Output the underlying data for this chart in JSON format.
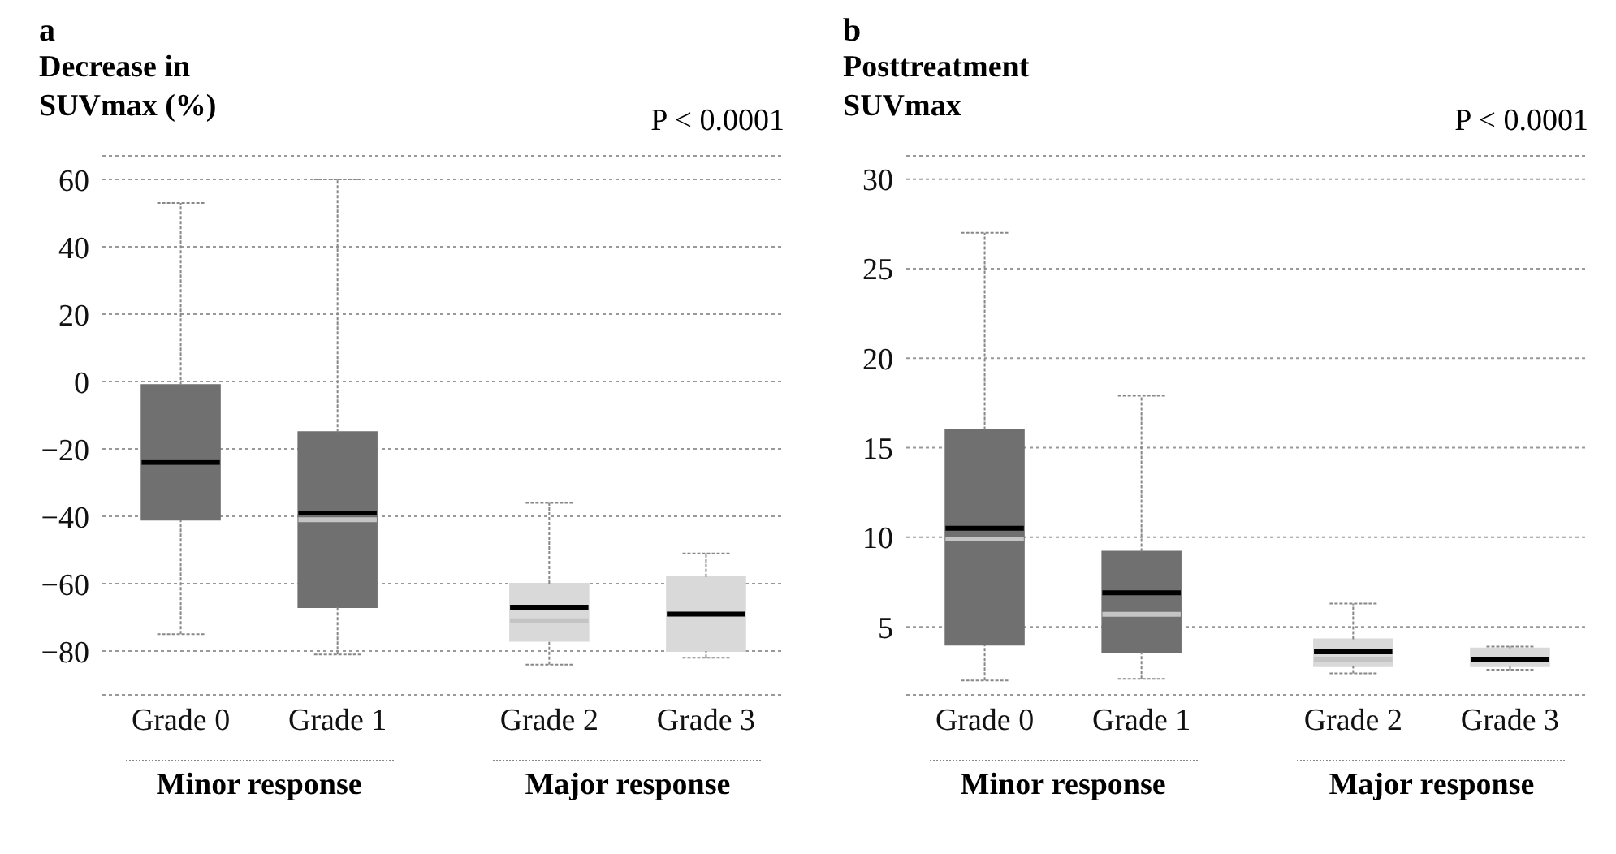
{
  "chart_data": [
    {
      "type": "box",
      "title": "a",
      "ylabel": "Decrease in SUVmax (%)",
      "categories": [
        "Grade 0",
        "Grade 1",
        "Grade 2",
        "Grade 3"
      ],
      "colors": [
        "#707070",
        "#707070",
        "#d9d9d9",
        "#d9d9d9"
      ],
      "boxes": [
        {
          "low": -75,
          "q1": -41,
          "median": -24,
          "q3": -1,
          "high": 53,
          "mean": -24
        },
        {
          "low": -81,
          "q1": -67,
          "median": -41,
          "q3": -15,
          "high": 60,
          "mean": -39
        },
        {
          "low": -84,
          "q1": -77,
          "median": -71,
          "q3": -60,
          "high": -36,
          "mean": -67
        },
        {
          "low": -82,
          "q1": -80,
          "median": -69,
          "q3": -58,
          "high": -51,
          "mean": -69
        }
      ],
      "ylim": [
        -93,
        67
      ],
      "yticks": [
        -80,
        -60,
        -40,
        -20,
        0,
        20,
        40,
        60
      ],
      "grid": "y",
      "annotations": [
        "P < 0.0001",
        "Minor response",
        "Major response"
      ]
    },
    {
      "type": "box",
      "title": "b",
      "ylabel": "Posttreatment SUVmax",
      "categories": [
        "Grade 0",
        "Grade 1",
        "Grade 2",
        "Grade 3"
      ],
      "colors": [
        "#707070",
        "#707070",
        "#d9d9d9",
        "#d9d9d9"
      ],
      "boxes": [
        {
          "low": 2,
          "q1": 4,
          "median": 9.9,
          "q3": 16,
          "high": 27,
          "mean": 10.5
        },
        {
          "low": 2.1,
          "q1": 3.6,
          "median": 5.7,
          "q3": 9.2,
          "high": 17.9,
          "mean": 6.9
        },
        {
          "low": 2.4,
          "q1": 2.8,
          "median": 3.2,
          "q3": 4.3,
          "high": 6.3,
          "mean": 3.6
        },
        {
          "low": 2.6,
          "q1": 2.8,
          "median": 3.2,
          "q3": 3.8,
          "high": 3.9,
          "mean": 3.2
        }
      ],
      "ylim": [
        1.2,
        31.3
      ],
      "yticks": [
        5,
        10,
        15,
        20,
        25,
        30
      ],
      "grid": "y",
      "annotations": [
        "P < 0.0001",
        "Minor response",
        "Major response"
      ]
    }
  ]
}
